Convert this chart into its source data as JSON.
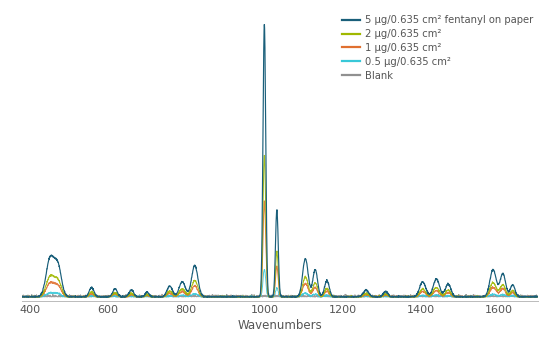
{
  "title": "",
  "xlabel": "Wavenumbers",
  "ylabel": "",
  "xlim": [
    380,
    1700
  ],
  "ylim": [
    -0.015,
    1.05
  ],
  "colors": {
    "5ug": "#1a5f7a",
    "2ug": "#a0b800",
    "1ug": "#e07030",
    "0p5ug": "#38c8d8",
    "blank": "#909090"
  },
  "legend_labels": [
    "5 μg/0.635 cm² fentanyl on paper",
    "2 μg/0.635 cm²",
    "1 μg/0.635 cm²",
    "0.5 μg/0.635 cm²",
    "Blank"
  ],
  "background_color": "#ffffff",
  "xticks": [
    400,
    600,
    800,
    1000,
    1200,
    1400,
    1600
  ]
}
